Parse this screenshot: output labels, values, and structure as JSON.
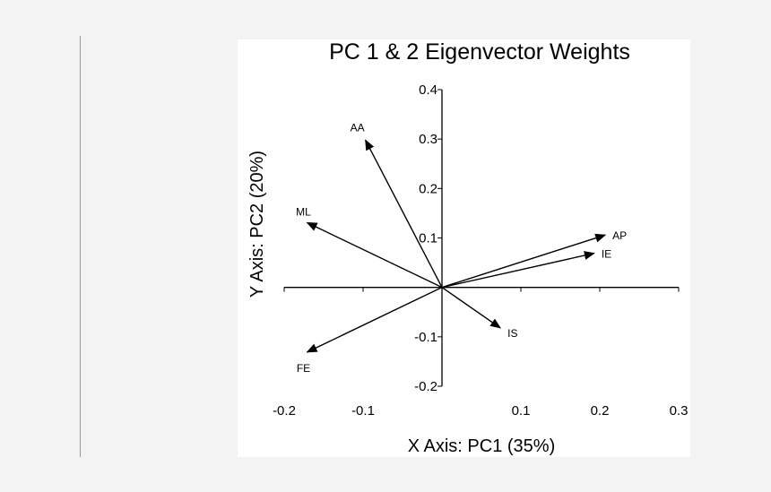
{
  "chart_data": {
    "type": "biplot",
    "title": "PC 1 & 2 Eigenvector Weights",
    "xlabel": "X Axis: PC1 (35%)",
    "ylabel": "Y Axis: PC2 (20%)",
    "xlim": [
      -0.2,
      0.3
    ],
    "ylim": [
      -0.2,
      0.4
    ],
    "xticks": [
      -0.2,
      -0.1,
      0.1,
      0.2,
      0.3
    ],
    "xtick_labels": [
      "-0.2",
      "-0.1",
      "0.1",
      "0.2",
      "0.3"
    ],
    "yticks": [
      -0.2,
      -0.1,
      0.1,
      0.2,
      0.3,
      0.4
    ],
    "ytick_labels": [
      "-0.2",
      "-0.1",
      "0.1",
      "0.2",
      "0.3",
      "0.4"
    ],
    "grid": false,
    "vectors": [
      {
        "label": "AA",
        "x": -0.097,
        "y": 0.298
      },
      {
        "label": "ML",
        "x": -0.171,
        "y": 0.131
      },
      {
        "label": "AP",
        "x": 0.207,
        "y": 0.106
      },
      {
        "label": "IE",
        "x": 0.193,
        "y": 0.069
      },
      {
        "label": "IS",
        "x": 0.074,
        "y": -0.082
      },
      {
        "label": "FE",
        "x": -0.171,
        "y": -0.131
      }
    ]
  }
}
